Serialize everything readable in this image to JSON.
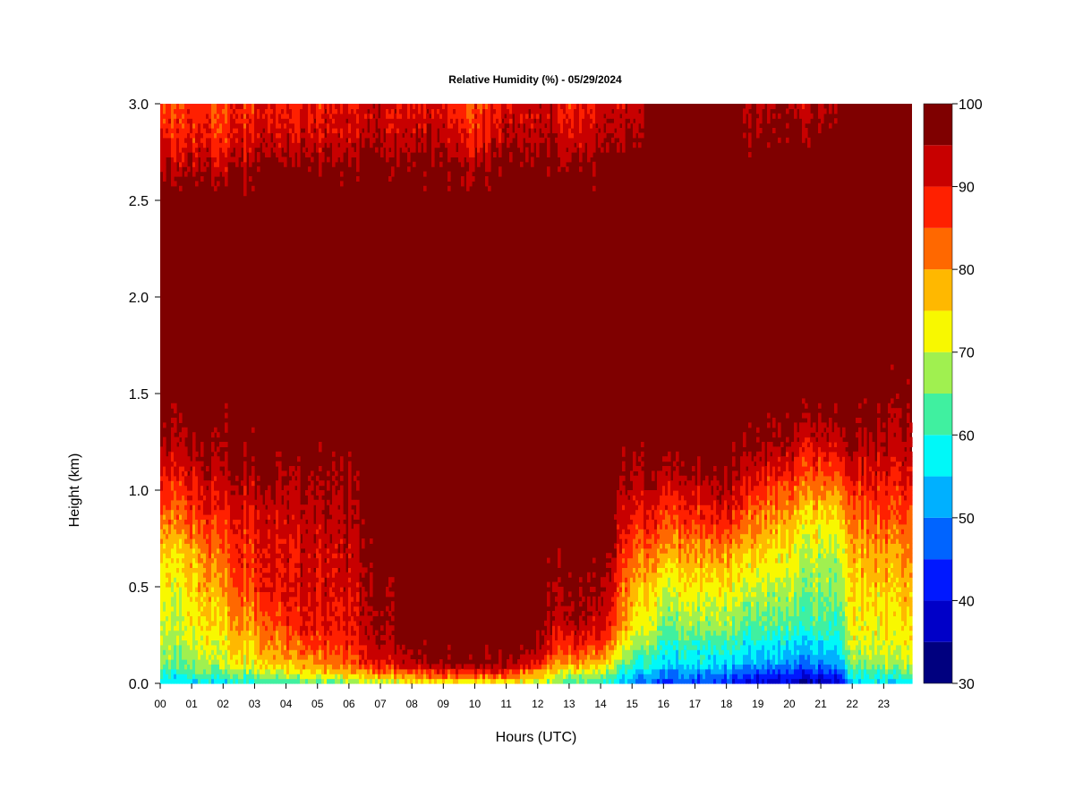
{
  "chart_data": {
    "type": "heatmap",
    "title": "Relative Humidity (%) - 05/29/2024",
    "xlabel": "Hours (UTC)",
    "ylabel": "Height (km)",
    "x_ticks": [
      "00",
      "01",
      "02",
      "03",
      "04",
      "05",
      "06",
      "07",
      "08",
      "09",
      "10",
      "11",
      "12",
      "13",
      "14",
      "15",
      "16",
      "17",
      "18",
      "19",
      "20",
      "21",
      "22",
      "23"
    ],
    "y_ticks": [
      "0.0",
      "0.5",
      "1.0",
      "1.5",
      "2.0",
      "2.5",
      "3.0"
    ],
    "xlim": [
      0,
      23.9
    ],
    "ylim": [
      0,
      3.0
    ],
    "colorbar": {
      "ticks": [
        "30",
        "40",
        "50",
        "60",
        "70",
        "80",
        "90",
        "100"
      ],
      "levels": [
        30,
        35,
        40,
        45,
        50,
        55,
        60,
        65,
        70,
        75,
        80,
        85,
        90,
        95,
        100
      ],
      "colors": [
        "#00007F",
        "#0000C8",
        "#0018FF",
        "#0064FF",
        "#00B0FF",
        "#00F8F8",
        "#40F0A0",
        "#A0F050",
        "#F8F800",
        "#FFB800",
        "#FF6800",
        "#FF2000",
        "#C80000",
        "#7F0000"
      ]
    },
    "profile_hours": [
      0,
      1,
      2,
      3,
      4,
      5,
      6,
      7,
      8,
      9,
      10,
      11,
      12,
      12.5,
      13,
      14,
      15,
      16,
      17,
      18,
      19,
      20,
      21,
      21.7,
      22,
      23,
      23.9
    ],
    "profile_heights_km": [
      0,
      0.05,
      0.1,
      0.2,
      0.3,
      0.5,
      0.7,
      0.9,
      1.1,
      1.3,
      1.5,
      2.0,
      2.5,
      2.7,
      2.8,
      2.9,
      3.0
    ],
    "rh_profiles": [
      [
        55,
        60,
        65,
        68,
        70,
        72,
        76,
        84,
        90,
        96,
        100,
        100,
        100,
        94,
        90,
        88,
        86
      ],
      [
        55,
        62,
        66,
        69,
        72,
        74,
        78,
        86,
        92,
        97,
        100,
        100,
        100,
        94,
        90,
        88,
        86
      ],
      [
        56,
        64,
        70,
        73,
        76,
        80,
        84,
        90,
        95,
        98,
        100,
        100,
        100,
        92,
        88,
        86,
        85
      ],
      [
        58,
        66,
        72,
        76,
        80,
        86,
        88,
        91,
        96,
        99,
        100,
        100,
        100,
        95,
        92,
        90,
        88
      ],
      [
        60,
        70,
        76,
        82,
        86,
        90,
        90,
        92,
        96,
        99,
        100,
        100,
        100,
        96,
        92,
        90,
        88
      ],
      [
        62,
        74,
        80,
        86,
        90,
        92,
        92,
        94,
        97,
        100,
        100,
        100,
        100,
        97,
        93,
        91,
        90
      ],
      [
        64,
        78,
        84,
        88,
        90,
        92,
        93,
        95,
        98,
        100,
        100,
        100,
        100,
        97,
        93,
        92,
        90
      ],
      [
        68,
        80,
        90,
        95,
        97,
        98,
        99,
        100,
        100,
        100,
        100,
        100,
        100,
        98,
        95,
        93,
        92
      ],
      [
        70,
        84,
        95,
        98,
        100,
        100,
        100,
        100,
        100,
        100,
        100,
        100,
        100,
        98,
        95,
        93,
        92
      ],
      [
        72,
        86,
        96,
        99,
        100,
        100,
        100,
        100,
        100,
        100,
        100,
        100,
        100,
        97,
        94,
        92,
        90
      ],
      [
        72,
        88,
        98,
        100,
        100,
        100,
        100,
        100,
        100,
        100,
        100,
        100,
        100,
        95,
        90,
        88,
        85
      ],
      [
        70,
        84,
        94,
        99,
        100,
        100,
        100,
        100,
        100,
        100,
        100,
        100,
        100,
        97,
        94,
        92,
        90
      ],
      [
        68,
        78,
        90,
        97,
        100,
        100,
        100,
        100,
        100,
        100,
        100,
        100,
        100,
        98,
        95,
        93,
        92
      ],
      [
        66,
        72,
        80,
        88,
        92,
        96,
        98,
        100,
        100,
        100,
        100,
        100,
        100,
        98,
        96,
        94,
        92
      ],
      [
        62,
        70,
        80,
        90,
        96,
        99,
        100,
        100,
        100,
        100,
        100,
        100,
        100,
        96,
        92,
        90,
        88
      ],
      [
        60,
        66,
        76,
        86,
        92,
        96,
        100,
        100,
        100,
        100,
        100,
        100,
        100,
        98,
        94,
        92,
        90
      ],
      [
        50,
        56,
        62,
        70,
        76,
        80,
        86,
        92,
        97,
        100,
        100,
        100,
        100,
        100,
        98,
        96,
        95
      ],
      [
        45,
        50,
        56,
        60,
        66,
        72,
        80,
        88,
        95,
        100,
        100,
        100,
        100,
        100,
        100,
        100,
        100
      ],
      [
        44,
        50,
        55,
        60,
        66,
        72,
        80,
        88,
        96,
        100,
        100,
        100,
        100,
        100,
        100,
        100,
        100
      ],
      [
        40,
        48,
        54,
        60,
        66,
        72,
        80,
        90,
        97,
        100,
        100,
        100,
        100,
        100,
        100,
        100,
        100
      ],
      [
        38,
        44,
        52,
        58,
        64,
        70,
        76,
        84,
        92,
        98,
        100,
        100,
        100,
        100,
        98,
        96,
        95
      ],
      [
        36,
        42,
        50,
        56,
        62,
        68,
        72,
        78,
        88,
        96,
        100,
        100,
        100,
        100,
        98,
        96,
        94
      ],
      [
        36,
        42,
        50,
        56,
        62,
        66,
        70,
        76,
        86,
        94,
        100,
        100,
        100,
        100,
        98,
        96,
        94
      ],
      [
        38,
        44,
        52,
        58,
        62,
        66,
        70,
        76,
        86,
        95,
        100,
        100,
        100,
        100,
        100,
        100,
        100
      ],
      [
        54,
        60,
        66,
        70,
        72,
        74,
        78,
        84,
        92,
        97,
        100,
        100,
        100,
        100,
        100,
        100,
        100
      ],
      [
        56,
        62,
        68,
        72,
        74,
        76,
        80,
        86,
        92,
        96,
        99,
        100,
        100,
        100,
        100,
        100,
        100
      ],
      [
        56,
        62,
        68,
        72,
        74,
        76,
        80,
        84,
        90,
        94,
        97,
        100,
        100,
        100,
        100,
        100,
        100
      ]
    ]
  }
}
